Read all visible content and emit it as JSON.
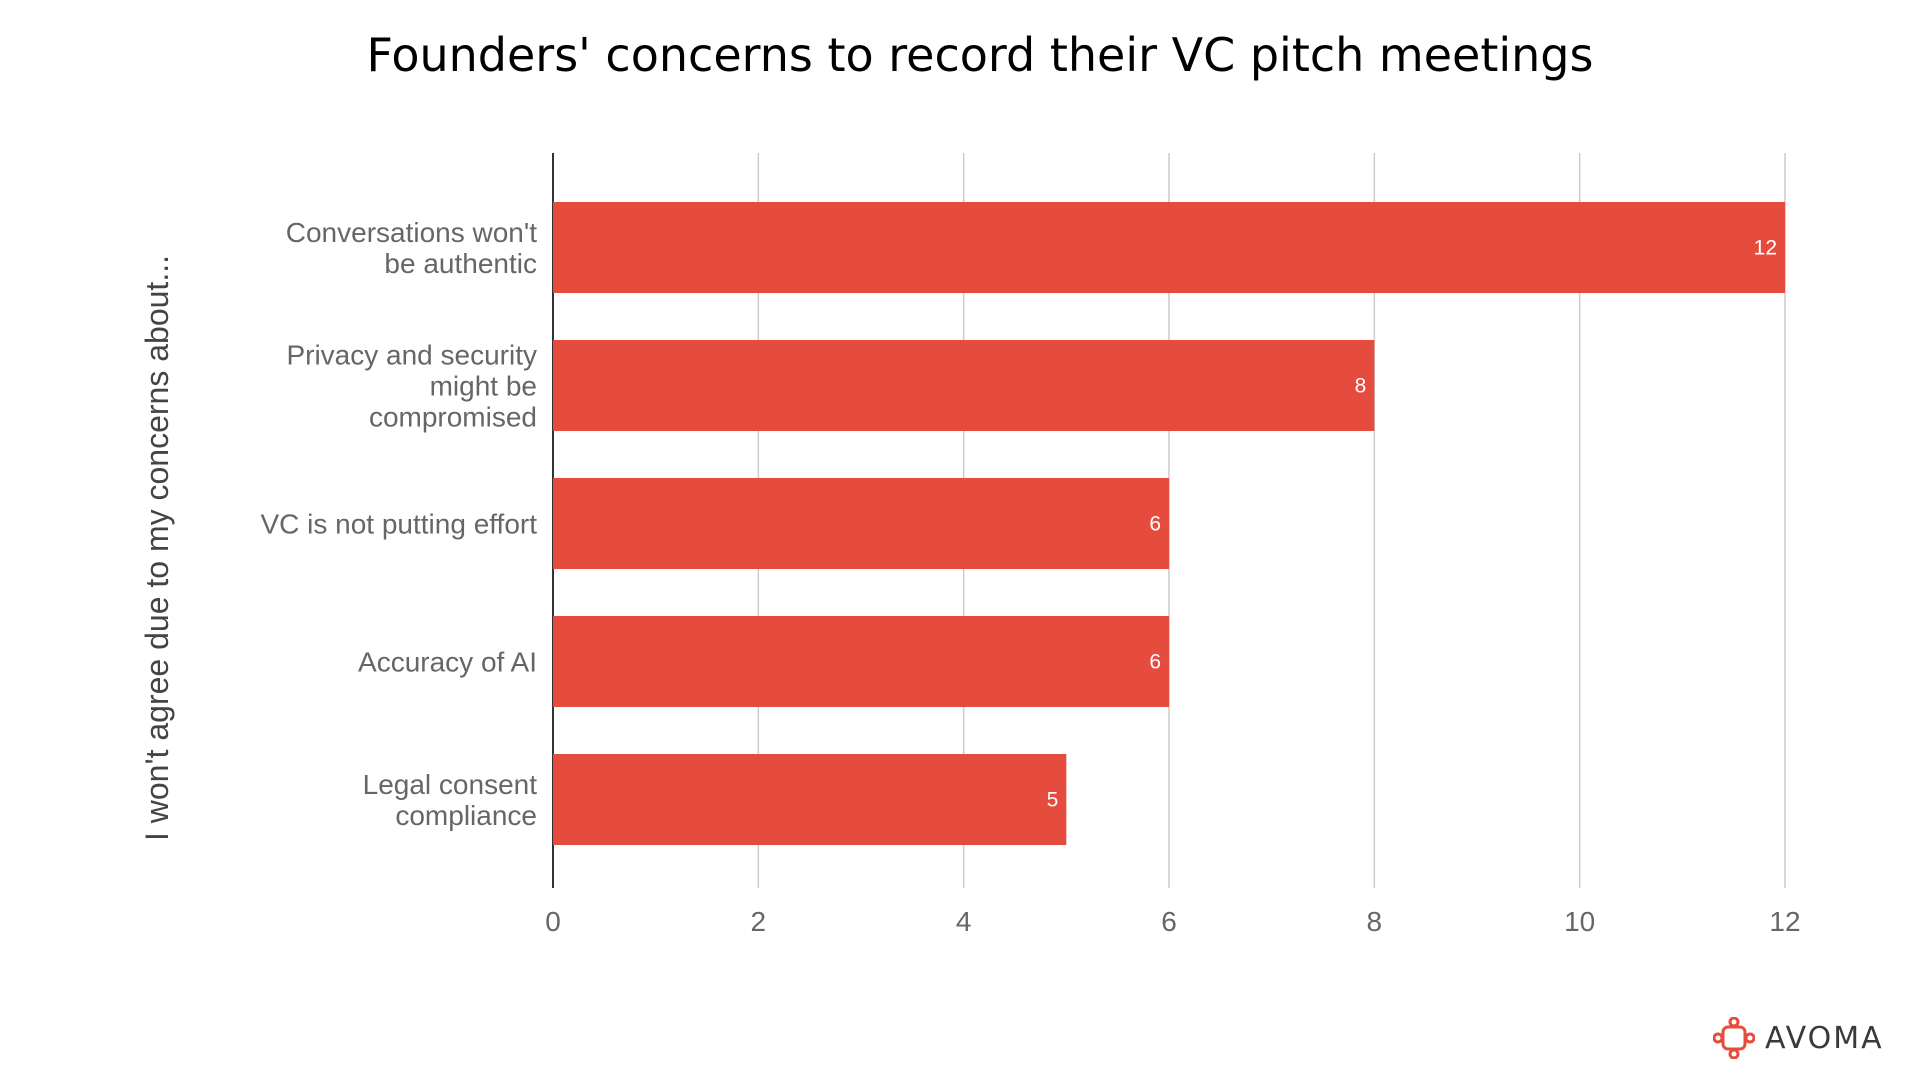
{
  "chart_data": {
    "type": "bar",
    "orientation": "horizontal",
    "title": "Founders' concerns to record their VC pitch meetings",
    "ylabel": "I won't agree due to my concerns about...",
    "xlabel": "",
    "categories": [
      [
        "Conversations won't",
        "be authentic"
      ],
      [
        "Privacy and security",
        "might be",
        "compromised"
      ],
      [
        "VC is not putting effort"
      ],
      [
        "Accuracy of AI"
      ],
      [
        "Legal consent",
        "compliance"
      ]
    ],
    "values": [
      12,
      8,
      6,
      6,
      5
    ],
    "xlim": [
      0,
      12
    ],
    "xticks": [
      0,
      2,
      4,
      6,
      8,
      10,
      12
    ],
    "grid": true,
    "bar_color": "#e64c3e",
    "data_labels": true
  },
  "branding": {
    "name": "AVOMA",
    "icon": "avoma-logo-icon",
    "icon_color": "#e64c3e"
  }
}
